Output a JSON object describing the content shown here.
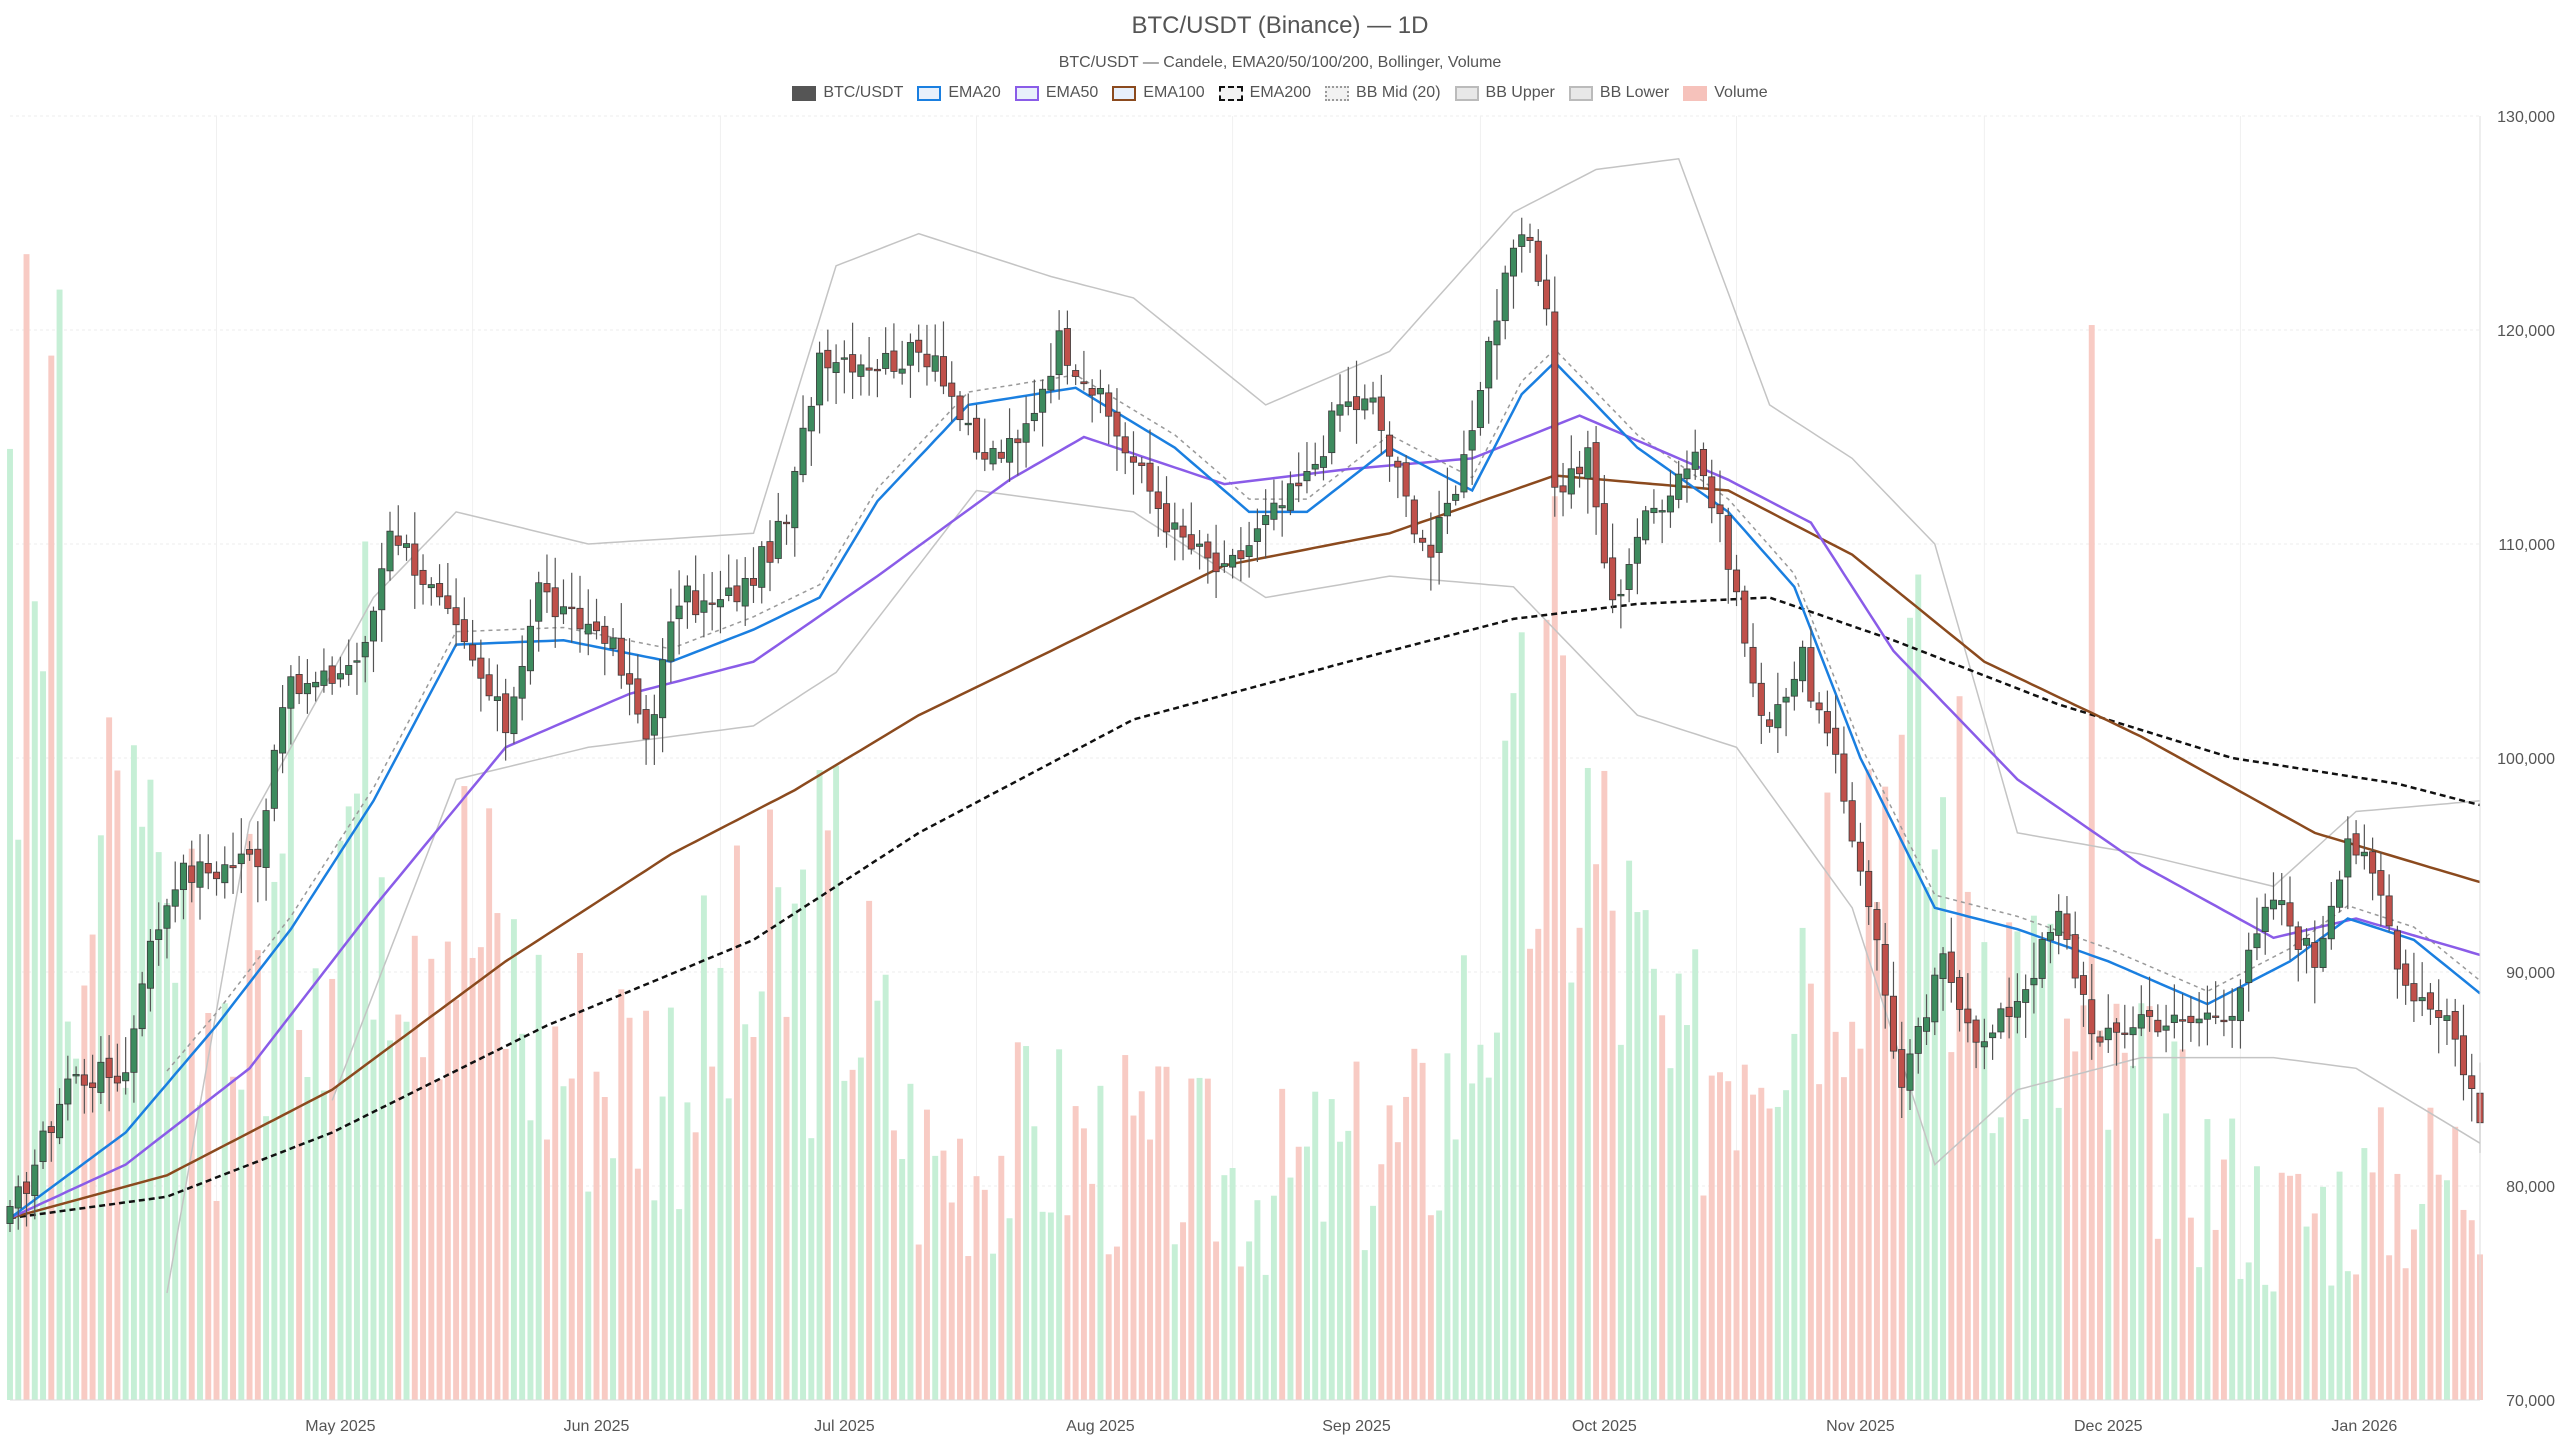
{
  "chart_data": {
    "type": "candlestick",
    "title": "BTC/USDT (Binance) — 1D",
    "subtitle": "BTC/USDT — Candele, EMA20/50/100/200, Bollinger, Volume",
    "legend": [
      {
        "name": "BTC/USDT",
        "color": "#555555",
        "style": "solid-fill"
      },
      {
        "name": "EMA20",
        "color": "#1a7fe0",
        "style": "line"
      },
      {
        "name": "EMA50",
        "color": "#8a5ce8",
        "style": "line"
      },
      {
        "name": "EMA100",
        "color": "#8b4a1e",
        "style": "line"
      },
      {
        "name": "EMA200",
        "color": "#111111",
        "style": "dashed"
      },
      {
        "name": "BB Mid (20)",
        "color": "#9a9a9a",
        "style": "dotted"
      },
      {
        "name": "BB Upper",
        "color": "#bbbbbb",
        "style": "line"
      },
      {
        "name": "BB Lower",
        "color": "#bbbbbb",
        "style": "line"
      },
      {
        "name": "Volume",
        "color": "#f6c2bb",
        "style": "fill"
      }
    ],
    "x_ticks": [
      "May 2025",
      "Jun 2025",
      "Jul 2025",
      "Aug 2025",
      "Sep 2025",
      "Oct 2025",
      "Nov 2025",
      "Dec 2025",
      "Jan 2026"
    ],
    "y_ticks": [
      "70,000",
      "80,000",
      "90,000",
      "100,000",
      "110,000",
      "120,000",
      "130,000"
    ],
    "y_range": [
      70000,
      130000
    ],
    "x_range": [
      "2025-04-06",
      "2026-01-30"
    ],
    "y_axis_position": "right",
    "legend_position": "top-center",
    "grid": true,
    "colors": {
      "up": "#3d8b5e",
      "down": "#c0504a",
      "vol_up": "#c6efd6",
      "vol_down": "#f8cbc4"
    },
    "close_anchors": [
      [
        "2025-04-06",
        78500
      ],
      [
        "2025-04-10",
        82000
      ],
      [
        "2025-04-13",
        85000
      ],
      [
        "2025-04-20",
        85300
      ],
      [
        "2025-04-22",
        90000
      ],
      [
        "2025-04-26",
        94500
      ],
      [
        "2025-05-01",
        94800
      ],
      [
        "2025-05-06",
        95500
      ],
      [
        "2025-05-09",
        103000
      ],
      [
        "2025-05-14",
        103500
      ],
      [
        "2025-05-19",
        105000
      ],
      [
        "2025-05-22",
        111000
      ],
      [
        "2025-05-26",
        108500
      ],
      [
        "2025-05-31",
        105000
      ],
      [
        "2025-06-05",
        101500
      ],
      [
        "2025-06-09",
        108000
      ],
      [
        "2025-06-12",
        106500
      ],
      [
        "2025-06-17",
        106000
      ],
      [
        "2025-06-22",
        101000
      ],
      [
        "2025-06-26",
        107500
      ],
      [
        "2025-06-30",
        107000
      ],
      [
        "2025-07-04",
        108000
      ],
      [
        "2025-07-09",
        111000
      ],
      [
        "2025-07-13",
        119000
      ],
      [
        "2025-07-20",
        118500
      ],
      [
        "2025-07-27",
        119000
      ],
      [
        "2025-08-01",
        114000
      ],
      [
        "2025-08-06",
        114500
      ],
      [
        "2025-08-11",
        119500
      ],
      [
        "2025-08-14",
        118000
      ],
      [
        "2025-08-19",
        114500
      ],
      [
        "2025-08-25",
        110500
      ],
      [
        "2025-08-31",
        108500
      ],
      [
        "2025-09-05",
        111000
      ],
      [
        "2025-09-10",
        113000
      ],
      [
        "2025-09-14",
        116500
      ],
      [
        "2025-09-18",
        116500
      ],
      [
        "2025-09-22",
        112000
      ],
      [
        "2025-09-25",
        109500
      ],
      [
        "2025-09-29",
        114000
      ],
      [
        "2025-10-02",
        119500
      ],
      [
        "2025-10-06",
        124500
      ],
      [
        "2025-10-09",
        121500
      ],
      [
        "2025-10-10",
        112500
      ],
      [
        "2025-10-14",
        114000
      ],
      [
        "2025-10-17",
        107000
      ],
      [
        "2025-10-20",
        110500
      ],
      [
        "2025-10-27",
        114500
      ],
      [
        "2025-10-31",
        109500
      ],
      [
        "2025-11-04",
        101500
      ],
      [
        "2025-11-09",
        104500
      ],
      [
        "2025-11-13",
        99500
      ],
      [
        "2025-11-17",
        93500
      ],
      [
        "2025-11-21",
        84500
      ],
      [
        "2025-11-26",
        90500
      ],
      [
        "2025-12-01",
        86500
      ],
      [
        "2025-12-06",
        89500
      ],
      [
        "2025-12-10",
        92500
      ],
      [
        "2025-12-15",
        86500
      ],
      [
        "2025-12-20",
        88000
      ],
      [
        "2025-12-25",
        87500
      ],
      [
        "2025-12-31",
        88500
      ],
      [
        "2026-01-05",
        93500
      ],
      [
        "2026-01-10",
        90500
      ],
      [
        "2026-01-14",
        96500
      ],
      [
        "2026-01-18",
        93500
      ],
      [
        "2026-01-21",
        89500
      ],
      [
        "2026-01-26",
        88000
      ],
      [
        "2026-01-29",
        84500
      ],
      [
        "2026-01-30",
        82800
      ]
    ],
    "ema20_anchors": [
      [
        "2025-04-06",
        78500
      ],
      [
        "2025-04-20",
        82500
      ],
      [
        "2025-05-01",
        87500
      ],
      [
        "2025-05-10",
        92000
      ],
      [
        "2025-05-20",
        98000
      ],
      [
        "2025-05-30",
        105300
      ],
      [
        "2025-06-12",
        105500
      ],
      [
        "2025-06-25",
        104500
      ],
      [
        "2025-07-05",
        106000
      ],
      [
        "2025-07-13",
        107500
      ],
      [
        "2025-07-20",
        112000
      ],
      [
        "2025-07-31",
        116500
      ],
      [
        "2025-08-13",
        117300
      ],
      [
        "2025-08-25",
        114500
      ],
      [
        "2025-09-03",
        111500
      ],
      [
        "2025-09-10",
        111500
      ],
      [
        "2025-09-20",
        114500
      ],
      [
        "2025-09-30",
        112500
      ],
      [
        "2025-10-06",
        117000
      ],
      [
        "2025-10-10",
        118500
      ],
      [
        "2025-10-20",
        114500
      ],
      [
        "2025-10-31",
        111500
      ],
      [
        "2025-11-08",
        108000
      ],
      [
        "2025-11-16",
        100000
      ],
      [
        "2025-11-25",
        93000
      ],
      [
        "2025-12-05",
        92000
      ],
      [
        "2025-12-16",
        90500
      ],
      [
        "2025-12-28",
        88500
      ],
      [
        "2026-01-07",
        90500
      ],
      [
        "2026-01-14",
        92500
      ],
      [
        "2026-01-22",
        91500
      ],
      [
        "2026-01-30",
        89000
      ]
    ],
    "ema50_anchors": [
      [
        "2025-04-06",
        78500
      ],
      [
        "2025-04-20",
        81000
      ],
      [
        "2025-05-05",
        85500
      ],
      [
        "2025-05-20",
        93000
      ],
      [
        "2025-06-05",
        100500
      ],
      [
        "2025-06-20",
        103000
      ],
      [
        "2025-07-05",
        104500
      ],
      [
        "2025-07-20",
        108500
      ],
      [
        "2025-08-05",
        113000
      ],
      [
        "2025-08-14",
        115000
      ],
      [
        "2025-08-31",
        112800
      ],
      [
        "2025-09-15",
        113500
      ],
      [
        "2025-09-30",
        114000
      ],
      [
        "2025-10-13",
        116000
      ],
      [
        "2025-10-31",
        113000
      ],
      [
        "2025-11-10",
        111000
      ],
      [
        "2025-11-20",
        105000
      ],
      [
        "2025-12-05",
        99000
      ],
      [
        "2025-12-20",
        95000
      ],
      [
        "2026-01-05",
        91600
      ],
      [
        "2026-01-15",
        92500
      ],
      [
        "2026-01-30",
        90800
      ]
    ],
    "ema100_anchors": [
      [
        "2025-04-06",
        78500
      ],
      [
        "2025-04-25",
        80500
      ],
      [
        "2025-05-15",
        84500
      ],
      [
        "2025-06-05",
        90500
      ],
      [
        "2025-06-25",
        95500
      ],
      [
        "2025-07-10",
        98500
      ],
      [
        "2025-07-25",
        102000
      ],
      [
        "2025-08-10",
        105000
      ],
      [
        "2025-08-31",
        109000
      ],
      [
        "2025-09-20",
        110500
      ],
      [
        "2025-10-10",
        113200
      ],
      [
        "2025-10-31",
        112500
      ],
      [
        "2025-11-15",
        109500
      ],
      [
        "2025-12-01",
        104500
      ],
      [
        "2025-12-20",
        101000
      ],
      [
        "2026-01-10",
        96500
      ],
      [
        "2026-01-30",
        94200
      ]
    ],
    "ema200_anchors": [
      [
        "2025-04-06",
        78500
      ],
      [
        "2025-04-25",
        79500
      ],
      [
        "2025-05-15",
        82500
      ],
      [
        "2025-06-10",
        87500
      ],
      [
        "2025-07-05",
        91500
      ],
      [
        "2025-07-25",
        96500
      ],
      [
        "2025-08-20",
        101800
      ],
      [
        "2025-09-15",
        104500
      ],
      [
        "2025-10-05",
        106500
      ],
      [
        "2025-10-20",
        107200
      ],
      [
        "2025-11-05",
        107500
      ],
      [
        "2025-11-20",
        105500
      ],
      [
        "2025-12-10",
        102500
      ],
      [
        "2025-12-31",
        100000
      ],
      [
        "2026-01-20",
        98800
      ],
      [
        "2026-01-30",
        97800
      ]
    ],
    "bb_upper_anchors": [
      [
        "2025-04-25",
        75000
      ],
      [
        "2025-05-05",
        97000
      ],
      [
        "2025-05-20",
        107500
      ],
      [
        "2025-05-30",
        111500
      ],
      [
        "2025-06-15",
        110000
      ],
      [
        "2025-07-05",
        110500
      ],
      [
        "2025-07-15",
        123000
      ],
      [
        "2025-07-25",
        124500
      ],
      [
        "2025-08-10",
        122500
      ],
      [
        "2025-08-20",
        121500
      ],
      [
        "2025-09-05",
        116500
      ],
      [
        "2025-09-20",
        119000
      ],
      [
        "2025-10-05",
        125500
      ],
      [
        "2025-10-15",
        127500
      ],
      [
        "2025-10-25",
        128000
      ],
      [
        "2025-11-05",
        116500
      ],
      [
        "2025-11-15",
        114000
      ],
      [
        "2025-11-25",
        110000
      ],
      [
        "2025-12-05",
        96500
      ],
      [
        "2025-12-20",
        95500
      ],
      [
        "2026-01-05",
        94000
      ],
      [
        "2026-01-15",
        97500
      ],
      [
        "2026-01-30",
        98000
      ]
    ],
    "bb_lower_anchors": [
      [
        "2025-05-15",
        84000
      ],
      [
        "2025-05-30",
        99000
      ],
      [
        "2025-06-15",
        100500
      ],
      [
        "2025-07-05",
        101500
      ],
      [
        "2025-07-15",
        104000
      ],
      [
        "2025-08-01",
        112500
      ],
      [
        "2025-08-20",
        111500
      ],
      [
        "2025-09-05",
        107500
      ],
      [
        "2025-09-20",
        108500
      ],
      [
        "2025-10-05",
        108000
      ],
      [
        "2025-10-20",
        102000
      ],
      [
        "2025-11-01",
        100500
      ],
      [
        "2025-11-15",
        93000
      ],
      [
        "2025-11-25",
        81000
      ],
      [
        "2025-12-05",
        84500
      ],
      [
        "2025-12-20",
        86000
      ],
      [
        "2026-01-05",
        86000
      ],
      [
        "2026-01-15",
        85500
      ],
      [
        "2026-01-30",
        82000
      ]
    ],
    "volume_anchors": [
      [
        "2025-04-06",
        0.85
      ],
      [
        "2025-04-15",
        0.45
      ],
      [
        "2025-05-01",
        0.3
      ],
      [
        "2025-05-20",
        0.55
      ],
      [
        "2025-06-10",
        0.3
      ],
      [
        "2025-06-25",
        0.28
      ],
      [
        "2025-07-15",
        0.4
      ],
      [
        "2025-07-25",
        0.2
      ],
      [
        "2025-08-10",
        0.22
      ],
      [
        "2025-09-05",
        0.18
      ],
      [
        "2025-09-25",
        0.22
      ],
      [
        "2025-10-10",
        0.55
      ],
      [
        "2025-10-25",
        0.25
      ],
      [
        "2025-11-20",
        0.55
      ],
      [
        "2025-12-10",
        0.3
      ],
      [
        "2026-01-05",
        0.15
      ],
      [
        "2026-01-30",
        0.2
      ]
    ]
  }
}
